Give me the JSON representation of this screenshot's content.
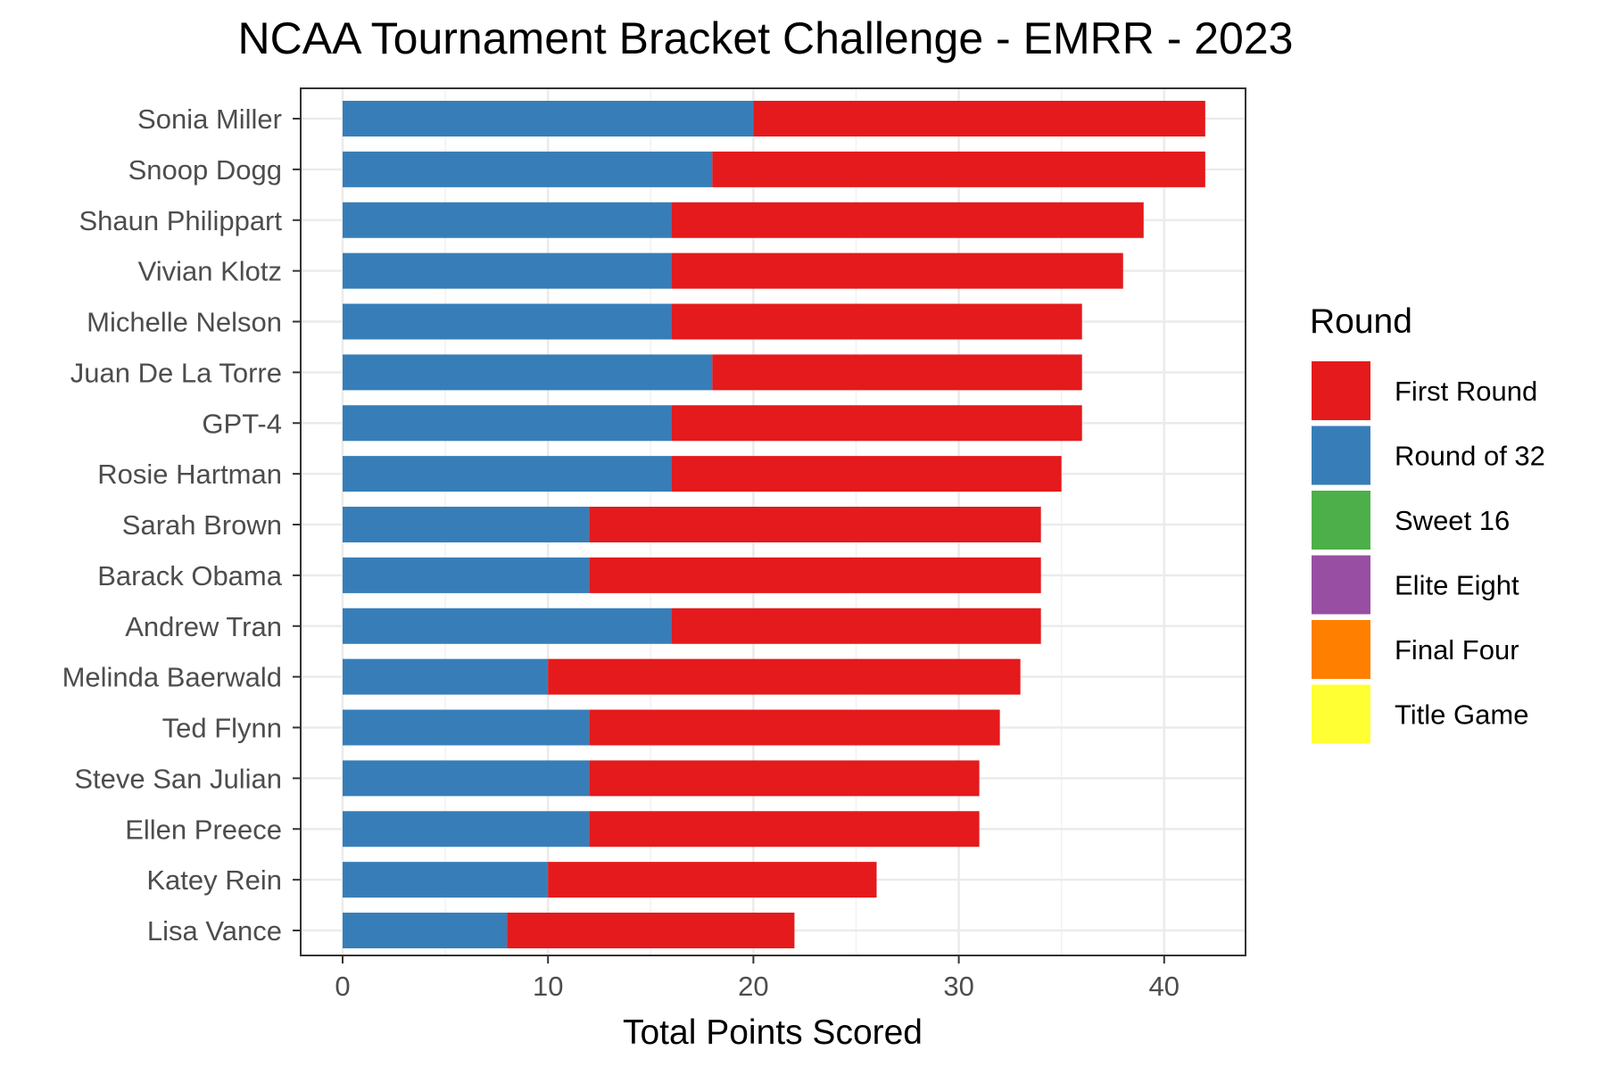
{
  "chart_data": {
    "type": "bar",
    "orientation": "horizontal",
    "stacked": true,
    "title": "NCAA Tournament Bracket Challenge - EMRR - 2023",
    "xlabel": "Total Points Scored",
    "ylabel": "",
    "xlim": [
      0,
      44
    ],
    "xticks": [
      0,
      10,
      20,
      30,
      40
    ],
    "grid": true,
    "legend_position": "right",
    "legend_title": "Round",
    "categories": [
      "Sonia Miller",
      "Snoop Dogg",
      "Shaun Philippart",
      "Vivian Klotz",
      "Michelle Nelson",
      "Juan De La Torre",
      "GPT-4",
      "Rosie Hartman",
      "Sarah Brown",
      "Barack Obama",
      "Andrew Tran",
      "Melinda Baerwald",
      "Ted Flynn",
      "Steve San Julian",
      "Ellen Preece",
      "Katey Rein",
      "Lisa Vance"
    ],
    "series": [
      {
        "name": "Round of 32",
        "color": "#377EB8",
        "values": [
          20,
          18,
          16,
          16,
          16,
          18,
          16,
          16,
          12,
          12,
          16,
          10,
          12,
          12,
          12,
          10,
          8
        ]
      },
      {
        "name": "First Round",
        "color": "#E41A1C",
        "values": [
          22,
          24,
          23,
          22,
          20,
          18,
          20,
          19,
          22,
          22,
          18,
          23,
          20,
          19,
          19,
          16,
          14
        ]
      }
    ],
    "legend": [
      {
        "name": "First Round",
        "color": "#E41A1C"
      },
      {
        "name": "Round of 32",
        "color": "#377EB8"
      },
      {
        "name": "Sweet 16",
        "color": "#4DAF4A"
      },
      {
        "name": "Elite Eight",
        "color": "#984EA3"
      },
      {
        "name": "Final Four",
        "color": "#FF7F00"
      },
      {
        "name": "Title Game",
        "color": "#FFFF33"
      }
    ]
  }
}
